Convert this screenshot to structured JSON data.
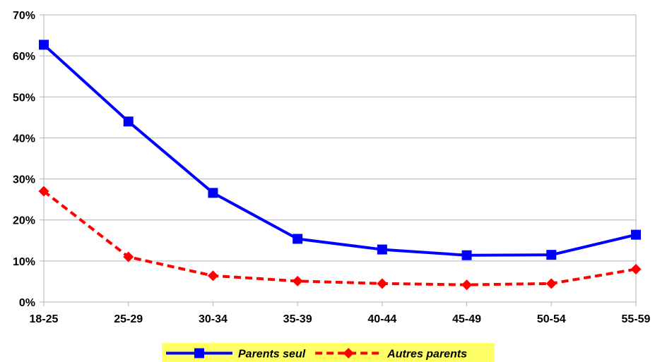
{
  "chart_data": {
    "type": "line",
    "categories": [
      "18-25",
      "25-29",
      "30-34",
      "35-39",
      "40-44",
      "45-49",
      "50-54",
      "55-59"
    ],
    "series": [
      {
        "name": "Parents seul",
        "values": [
          62.7,
          44.0,
          26.6,
          15.4,
          12.8,
          11.4,
          11.5,
          16.4
        ],
        "color": "#0000ff",
        "dash": "solid",
        "marker": "square"
      },
      {
        "name": "Autres parents",
        "values": [
          27.0,
          11.0,
          6.4,
          5.1,
          4.5,
          4.2,
          4.5,
          8.0
        ],
        "color": "#ff0000",
        "dash": "dashed",
        "marker": "diamond"
      }
    ],
    "y_ticks": [
      "0%",
      "10%",
      "20%",
      "30%",
      "40%",
      "50%",
      "60%",
      "70%"
    ],
    "ylim": [
      0,
      70
    ],
    "y_unit": "%",
    "grid": "horizontal",
    "legend_position": "bottom",
    "legend_background": "#ffff66",
    "grid_color": "#b3b3b3"
  }
}
